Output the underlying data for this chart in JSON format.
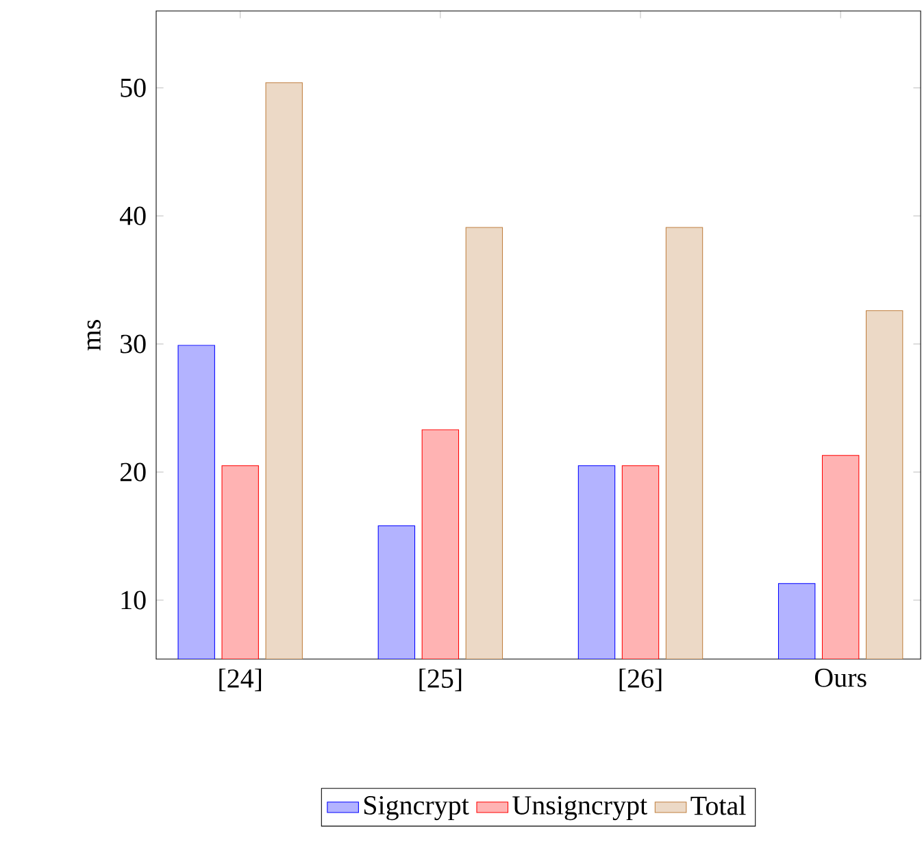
{
  "chart_data": {
    "type": "bar",
    "ylabel": "ms",
    "categories": [
      "[24]",
      "[25]",
      "[26]",
      "Ours"
    ],
    "series": [
      {
        "name": "Signcrypt",
        "color": "#b3b3ff",
        "values": [
          29.9,
          15.8,
          20.5,
          11.3
        ]
      },
      {
        "name": "Unsigncrypt",
        "color": "#ffb3b3",
        "values": [
          20.5,
          23.3,
          20.5,
          21.3
        ]
      },
      {
        "name": "Total",
        "color": "#ecd9c6",
        "values": [
          50.4,
          39.1,
          39.1,
          32.6
        ]
      }
    ],
    "ylim": [
      5.4,
      56
    ],
    "yticks": [
      10,
      20,
      30,
      40,
      50
    ],
    "grid": false,
    "legend": "bottom"
  }
}
